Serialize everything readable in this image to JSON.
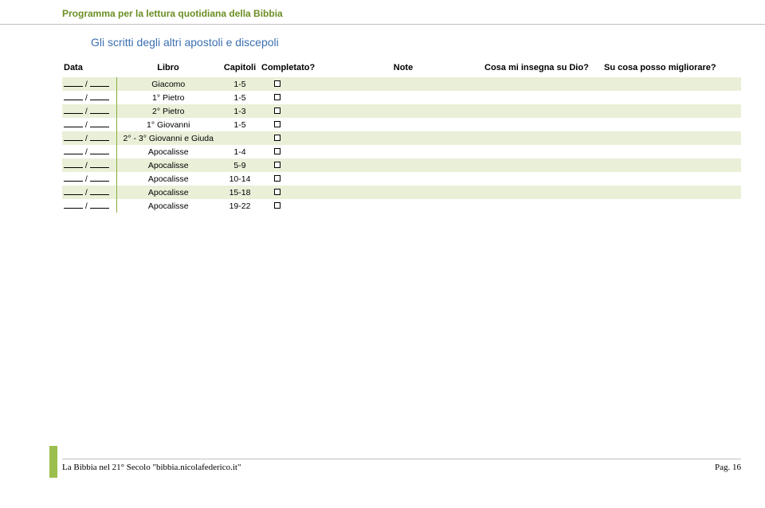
{
  "header": {
    "title": "Programma per la lettura quotidiana della Bibbia"
  },
  "subtitle": "Gli scritti degli altri apostoli e discepoli",
  "columns": {
    "data": "Data",
    "libro": "Libro",
    "capitoli": "Capitoli",
    "completato": "Completato?",
    "note": "Note",
    "q1": "Cosa mi insegna su Dio?",
    "q2": "Su cosa posso migliorare?"
  },
  "rows": [
    {
      "libro": "Giacomo",
      "cap": "1-5"
    },
    {
      "libro": "1° Pietro",
      "cap": "1-5"
    },
    {
      "libro": "2° Pietro",
      "cap": "1-3"
    },
    {
      "libro": "1° Giovanni",
      "cap": "1-5"
    },
    {
      "libro": "2° - 3° Giovanni e Giuda",
      "cap": ""
    },
    {
      "libro": "Apocalisse",
      "cap": "1-4"
    },
    {
      "libro": "Apocalisse",
      "cap": "5-9"
    },
    {
      "libro": "Apocalisse",
      "cap": "10-14"
    },
    {
      "libro": "Apocalisse",
      "cap": "15-18"
    },
    {
      "libro": "Apocalisse",
      "cap": "19-22"
    }
  ],
  "footer": {
    "left": "La Bibbia nel 21° Secolo \"bibbia.nicolafederico.it\"",
    "right": "Pag. 16"
  },
  "colors": {
    "header_text": "#6b8e23",
    "subtitle_text": "#3b6fb0",
    "row_alt_bg": "#eaf0d8",
    "left_marker": "#9bbf4e",
    "table_border": "#8aab3d"
  }
}
